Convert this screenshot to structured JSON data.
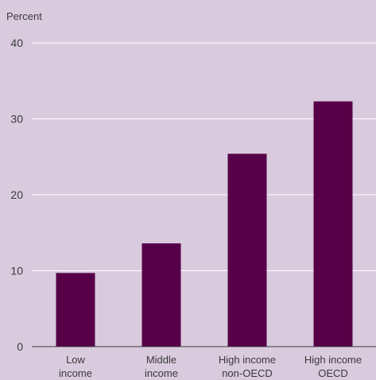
{
  "chart_data": {
    "type": "bar",
    "title": "",
    "ylabel": "Percent",
    "xlabel": "",
    "ylim": [
      0,
      40
    ],
    "yticks": [
      0,
      10,
      20,
      30,
      40
    ],
    "grid": true,
    "categories": [
      [
        "Low",
        "income"
      ],
      [
        "Middle",
        "income"
      ],
      [
        "High income",
        "non-OECD"
      ],
      [
        "High income",
        "OECD"
      ]
    ],
    "values": [
      9.7,
      13.6,
      25.4,
      32.3
    ],
    "colors": {
      "background": "#d9cade",
      "bar": "#570048",
      "grid": "#ffffff",
      "axis": "#3a3a3a",
      "text": "#3a3a3a"
    }
  }
}
